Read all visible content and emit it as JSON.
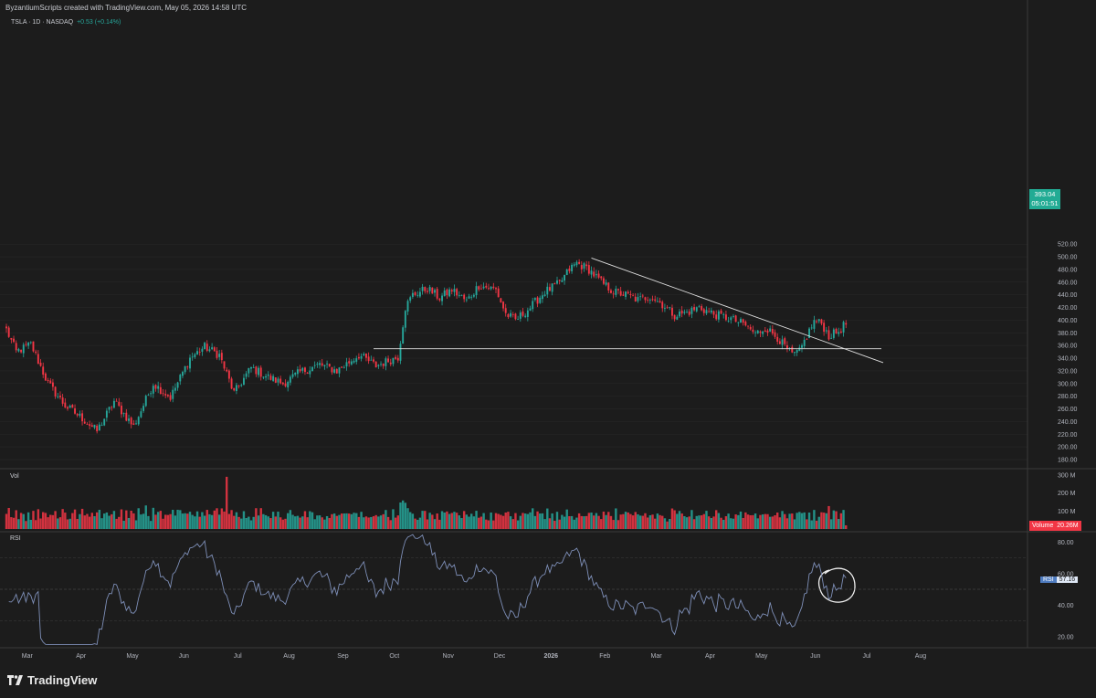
{
  "header": {
    "attribution": "ByzantiumScripts created with TradingView.com, May 05, 2026 14:58 UTC"
  },
  "ticker": {
    "symbol": "TSLA · 1D · NASDAQ",
    "change": "+0.53 (+0.14%)",
    "change_color": "#26a69a"
  },
  "price_badge": {
    "price": "393.04",
    "countdown": "05:01:51",
    "color": "#22ab94"
  },
  "volume": {
    "label": "Vol",
    "badge_label": "Volume",
    "badge_value": "20.26M",
    "axis_ticks": [
      "300 M",
      "200 M",
      "100 M"
    ]
  },
  "rsi": {
    "label": "RSI",
    "badge_label": "RSI",
    "badge_value": "57.16",
    "axis_ticks": [
      "80.00",
      "60.00",
      "40.00",
      "20.00"
    ],
    "line_color": "#7e8fb8"
  },
  "logo": {
    "text": "TradingView"
  },
  "colors": {
    "up": "#26a69a",
    "down": "#f23645",
    "background": "#1c1c1c",
    "grid": "#2a2a2a",
    "axis_text": "#b2b5be"
  },
  "chart_data": [
    {
      "type": "candlestick",
      "series_name": "TSLA",
      "y_axis_ticks": [
        520,
        500,
        480,
        460,
        440,
        420,
        400,
        380,
        360,
        340,
        320,
        300,
        280,
        260,
        240,
        220,
        200,
        180
      ],
      "ylim": [
        180,
        530
      ],
      "x_axis_labels": [
        "Mar",
        "Apr",
        "May",
        "Jun",
        "Jul",
        "Aug",
        "Sep",
        "Oct",
        "Nov",
        "Dec",
        "2026",
        "Feb",
        "Mar",
        "Apr",
        "May",
        "Jun",
        "Jul",
        "Aug"
      ],
      "candles_per_month": 21,
      "data_start": "2025-02-20",
      "anchors": [
        [
          0,
          385
        ],
        [
          4,
          350
        ],
        [
          10,
          362
        ],
        [
          17,
          300
        ],
        [
          24,
          265
        ],
        [
          31,
          245
        ],
        [
          37,
          225
        ],
        [
          44,
          272
        ],
        [
          52,
          232
        ],
        [
          60,
          300
        ],
        [
          67,
          278
        ],
        [
          75,
          340
        ],
        [
          81,
          358
        ],
        [
          87,
          345
        ],
        [
          93,
          285
        ],
        [
          100,
          325
        ],
        [
          107,
          310
        ],
        [
          113,
          300
        ],
        [
          120,
          318
        ],
        [
          128,
          330
        ],
        [
          135,
          320
        ],
        [
          144,
          345
        ],
        [
          151,
          328
        ],
        [
          160,
          342
        ],
        [
          163,
          420
        ],
        [
          166,
          440
        ],
        [
          172,
          450
        ],
        [
          177,
          435
        ],
        [
          182,
          448
        ],
        [
          188,
          430
        ],
        [
          193,
          455
        ],
        [
          200,
          448
        ],
        [
          204,
          410
        ],
        [
          208,
          400
        ],
        [
          214,
          420
        ],
        [
          220,
          445
        ],
        [
          226,
          458
        ],
        [
          230,
          480
        ],
        [
          233,
          490
        ],
        [
          238,
          480
        ],
        [
          243,
          460
        ],
        [
          248,
          445
        ],
        [
          253,
          440
        ],
        [
          258,
          432
        ],
        [
          263,
          438
        ],
        [
          268,
          425
        ],
        [
          273,
          408
        ],
        [
          278,
          412
        ],
        [
          283,
          420
        ],
        [
          290,
          408
        ],
        [
          296,
          402
        ],
        [
          302,
          392
        ],
        [
          306,
          378
        ],
        [
          310,
          388
        ],
        [
          315,
          373
        ],
        [
          318,
          358
        ],
        [
          321,
          345
        ],
        [
          324,
          350
        ],
        [
          327,
          375
        ],
        [
          330,
          398
        ],
        [
          333,
          395
        ],
        [
          336,
          375
        ],
        [
          340,
          382
        ],
        [
          343,
          396
        ]
      ],
      "last_price": 393.04,
      "horizontal_level": 355,
      "trendline": [
        [
          "2025-12-17",
          498
        ],
        [
          "2026-05-14",
          333
        ]
      ]
    },
    {
      "type": "bar",
      "series_name": "Volume",
      "y_axis_ticks": [
        "300 M",
        "200 M",
        "100 M"
      ],
      "ylim": [
        0,
        330
      ],
      "last_value_millions": 20.26
    },
    {
      "type": "line",
      "series_name": "RSI",
      "y_axis_ticks": [
        80,
        60,
        40,
        20
      ],
      "levels": [
        70,
        50,
        30
      ],
      "ylim": [
        12,
        88
      ],
      "last_value": 57.16
    }
  ]
}
